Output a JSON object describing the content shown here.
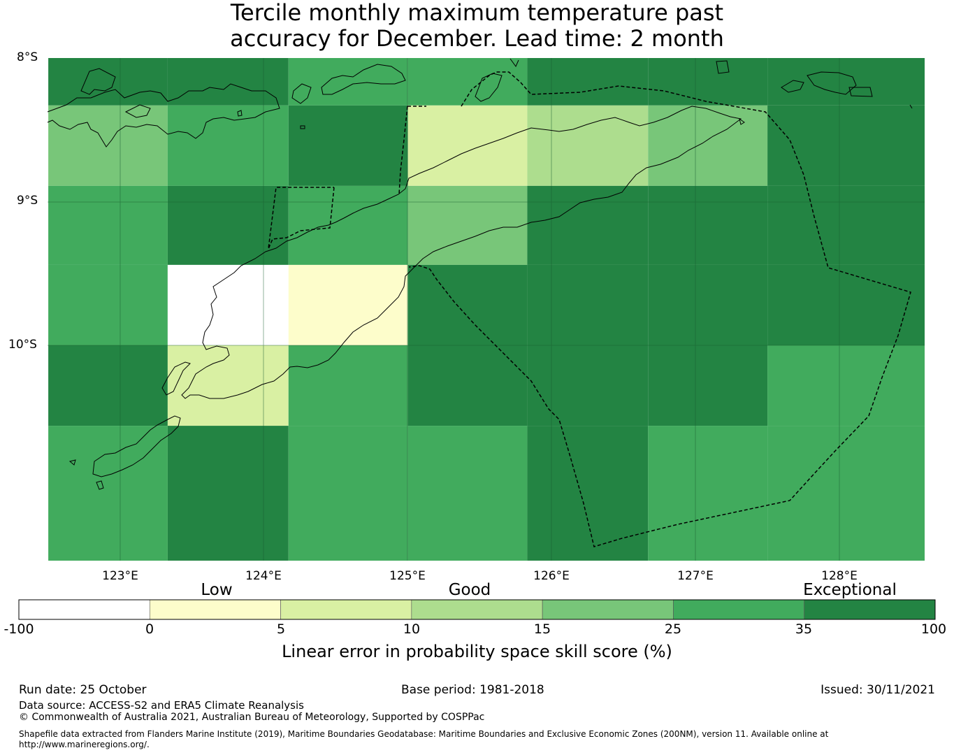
{
  "title_line1": "Tercile monthly maximum temperature past",
  "title_line2": "accuracy for December. Lead time: 2 month",
  "map": {
    "lat_labels": [
      "8°S",
      "9°S",
      "10°S"
    ],
    "lon_labels": [
      "123°E",
      "124°E",
      "125°E",
      "126°E",
      "127°E",
      "128°E"
    ],
    "grid_lon_edges": [
      122.5,
      123.33,
      124.17,
      125.0,
      125.83,
      126.67,
      127.5,
      128.6
    ],
    "grid_lat_edges": [
      -8.0,
      -8.33,
      -8.89,
      -9.44,
      -10.0,
      -10.56,
      -11.5
    ],
    "cell_categories": [
      [
        6,
        6,
        5,
        5,
        6,
        6,
        6
      ],
      [
        4,
        5,
        6,
        2,
        3,
        4,
        6
      ],
      [
        5,
        6,
        5,
        4,
        6,
        6,
        6
      ],
      [
        5,
        0,
        1,
        6,
        6,
        6,
        6
      ],
      [
        6,
        2,
        5,
        6,
        6,
        6,
        5
      ],
      [
        5,
        6,
        5,
        5,
        6,
        5,
        5
      ]
    ]
  },
  "colorbar": {
    "category_labels": [
      "Low",
      "Good",
      "Exceptional"
    ],
    "tick_labels": [
      "-100",
      "0",
      "5",
      "10",
      "15",
      "25",
      "35",
      "100"
    ],
    "colors": [
      "#ffffff",
      "#fdfdcb",
      "#d9f0a3",
      "#addd8e",
      "#78c679",
      "#41ab5d",
      "#238443"
    ],
    "label": "Linear error in probability space skill score (%)"
  },
  "footer": {
    "run_date": "Run date: 25 October",
    "base_period": "Base period: 1981-2018",
    "issued": "Issued: 30/11/2021",
    "data_source": "Data source: ACCESS-S2 and ERA5 Climate Reanalysis",
    "copyright": "© Commonwealth of Australia 2021, Australian Bureau of Meteorology, Supported by COSPPac",
    "shapefile_note": "Shapefile data extracted from Flanders Marine Institute (2019), Maritime Boundaries Geodatabase: Maritime Boundaries and Exclusive Economic Zones (200NM), version 11. Available online at http://www.marineregions.org/."
  }
}
